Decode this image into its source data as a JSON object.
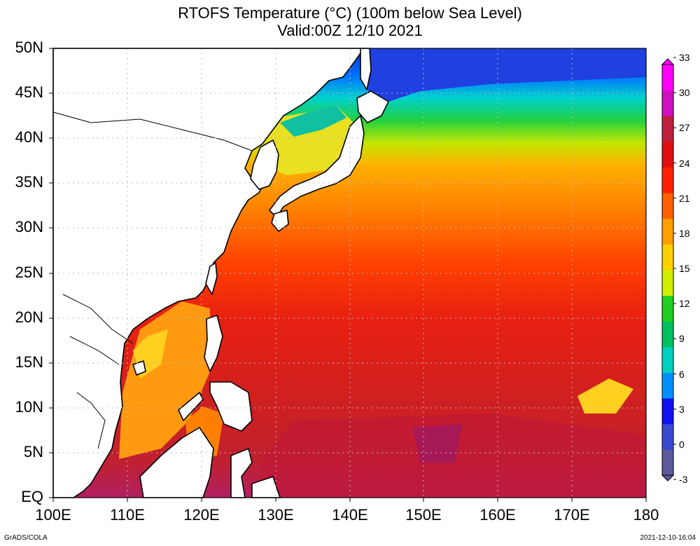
{
  "title": {
    "line1": "RTOFS Temperature (°C) (100m below Sea Level)",
    "line2": "Valid:00Z 12/10 2021"
  },
  "map": {
    "lon_range": [
      100,
      180
    ],
    "lat_range": [
      0,
      50
    ],
    "x_ticks": [
      "100E",
      "110E",
      "120E",
      "130E",
      "140E",
      "150E",
      "160E",
      "170E",
      "180"
    ],
    "y_ticks": [
      "EQ",
      "5N",
      "10N",
      "15N",
      "20N",
      "25N",
      "30N",
      "35N",
      "40N",
      "45N",
      "50N"
    ],
    "grid": "dotted",
    "land_color": "#ffffff",
    "coast_color": "#000000"
  },
  "colorbar": {
    "labels": [
      "-3",
      "0",
      "3",
      "6",
      "9",
      "12",
      "15",
      "18",
      "21",
      "24",
      "27",
      "30",
      "33"
    ],
    "colors": [
      "#5a5a9c",
      "#3a4ad0",
      "#1010f0",
      "#0090ff",
      "#00d0c0",
      "#00c060",
      "#20d020",
      "#d0f000",
      "#ffd000",
      "#ffa000",
      "#ff6000",
      "#ff2000",
      "#e01010",
      "#c02040",
      "#d010c0",
      "#ff00ff"
    ]
  },
  "footer": {
    "left": "GrADS/COLA",
    "right": "2021-12-10-16:04"
  }
}
